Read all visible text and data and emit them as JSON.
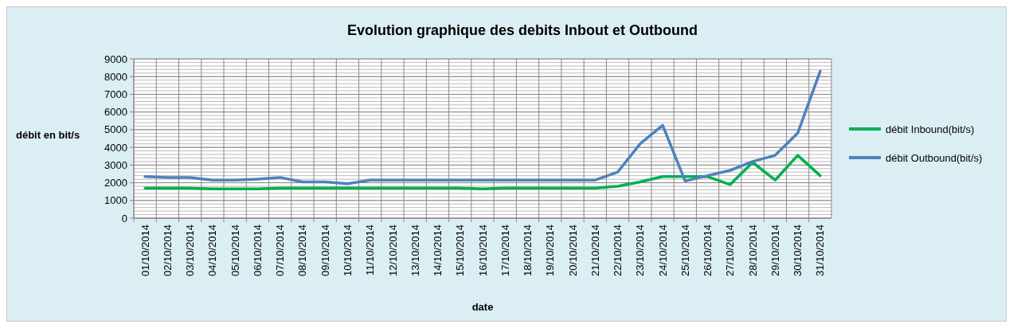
{
  "chart_data": {
    "type": "line",
    "title": "Evolution graphique des debits Inbout et Outbound",
    "xlabel": "date",
    "ylabel": "débit en bit/s",
    "categories": [
      "01/10/2014",
      "02/10/2014",
      "03/10/2014",
      "04/10/2014",
      "05/10/2014",
      "06/10/2014",
      "07/10/2014",
      "08/10/2014",
      "09/10/2014",
      "10/10/2014",
      "11/10/2014",
      "12/10/2014",
      "13/10/2014",
      "14/10/2014",
      "15/10/2014",
      "16/10/2014",
      "17/10/2014",
      "18/10/2014",
      "19/10/2014",
      "20/10/2014",
      "21/10/2014",
      "22/10/2014",
      "23/10/2014",
      "24/10/2014",
      "25/10/2014",
      "26/10/2014",
      "27/10/2014",
      "28/10/2014",
      "29/10/2014",
      "30/10/2014",
      "31/10/2014"
    ],
    "series": [
      {
        "name": "débit Inbound(bit/s)",
        "color": "#00b050",
        "values": [
          1700,
          1700,
          1700,
          1650,
          1650,
          1650,
          1700,
          1700,
          1700,
          1700,
          1700,
          1700,
          1700,
          1700,
          1700,
          1650,
          1700,
          1700,
          1700,
          1700,
          1700,
          1800,
          2050,
          2350,
          2350,
          2350,
          1900,
          3150,
          2150,
          3550,
          2400
        ]
      },
      {
        "name": "débit Outbound(bit/s)",
        "color": "#4f81bd",
        "values": [
          2350,
          2300,
          2300,
          2150,
          2150,
          2200,
          2300,
          2050,
          2050,
          1950,
          2150,
          2150,
          2150,
          2150,
          2150,
          2150,
          2150,
          2150,
          2150,
          2150,
          2150,
          2600,
          4200,
          5250,
          2100,
          2400,
          2700,
          3200,
          3550,
          4800,
          8300
        ]
      }
    ],
    "ylim": [
      0,
      9000
    ],
    "yticks": [
      0,
      1000,
      2000,
      3000,
      4000,
      5000,
      6000,
      7000,
      8000,
      9000
    ],
    "grid": true,
    "legend": "right",
    "marker": "none",
    "line_style": "solid"
  }
}
